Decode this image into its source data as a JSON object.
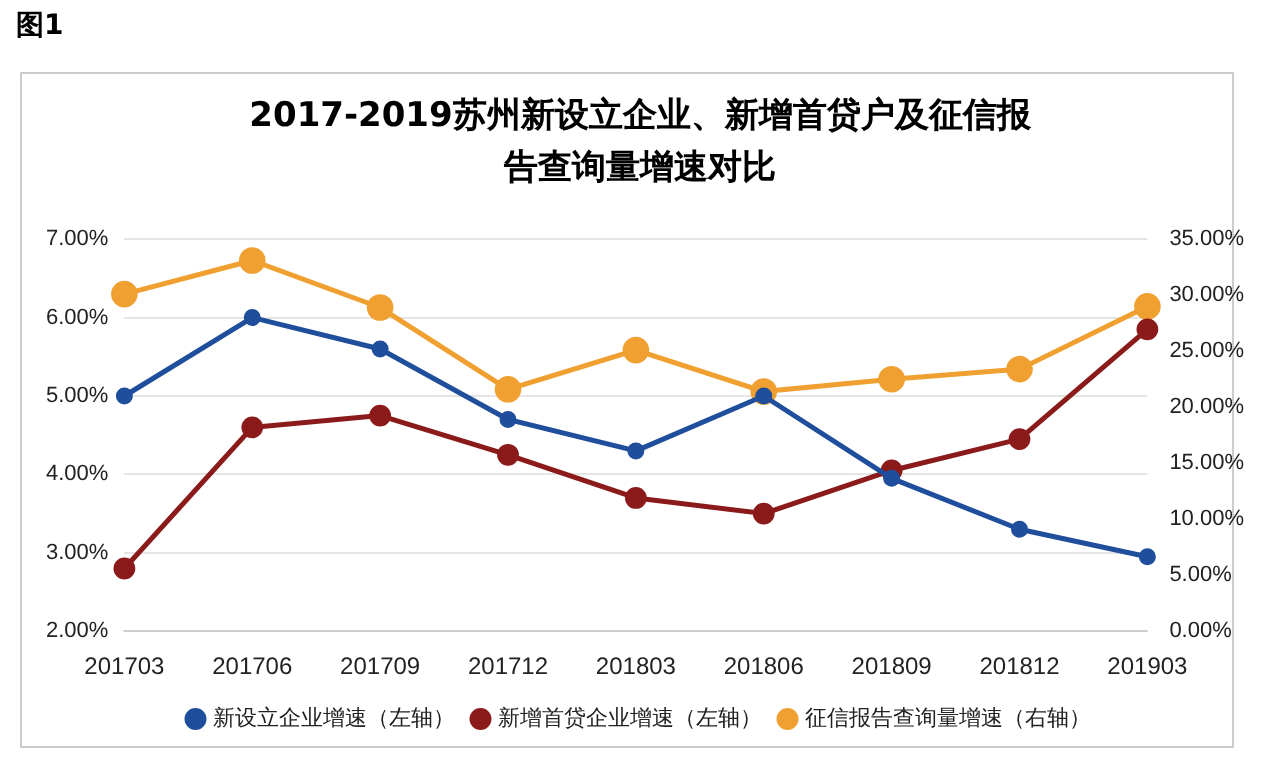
{
  "chart_data": {
    "type": "line",
    "title": "2017-2019苏州新设立企业、新增首贷户及征信报告查询量增速对比",
    "annotations": [
      "图1"
    ],
    "categories": [
      "201703",
      "201706",
      "201709",
      "201712",
      "201803",
      "201806",
      "201809",
      "201812",
      "201903"
    ],
    "series": [
      {
        "name": "新设立企业增速（左轴）",
        "color": "#1f4e9c",
        "values": [
          5.0,
          6.0,
          5.6,
          4.7,
          4.3,
          5.0,
          3.95,
          3.3,
          2.95
        ]
      },
      {
        "name": "新增首贷企业增速（左轴）",
        "color": "#8b1a1a",
        "values": [
          2.8,
          4.6,
          4.75,
          4.25,
          3.7,
          3.5,
          4.05,
          4.45,
          5.85
        ]
      },
      {
        "name": "征信报告查询量增速（右轴）",
        "color": "#f0a030",
        "axis": "y2",
        "values": [
          30.1,
          33.1,
          28.9,
          21.6,
          25.1,
          21.4,
          22.5,
          23.4,
          29.0
        ]
      }
    ],
    "ylim": [
      2,
      7
    ],
    "yticks": [
      {
        "value": 2,
        "label": "2.00%"
      },
      {
        "value": 3,
        "label": "3.00%"
      },
      {
        "value": 4,
        "label": "4.00%"
      },
      {
        "value": 5,
        "label": "5.00%"
      },
      {
        "value": 6,
        "label": "6.00%"
      },
      {
        "value": 7,
        "label": "7.00%"
      }
    ],
    "y2lim": [
      0,
      35
    ],
    "y2ticks": [
      {
        "value": 0,
        "label": "0.00%"
      },
      {
        "value": 5,
        "label": "5.00%"
      },
      {
        "value": 10,
        "label": "10.00%"
      },
      {
        "value": 15,
        "label": "15.00%"
      },
      {
        "value": 20,
        "label": "20.00%"
      },
      {
        "value": 25,
        "label": "25.00%"
      },
      {
        "value": 30,
        "label": "30.00%"
      },
      {
        "value": 35,
        "label": "35.00%"
      }
    ],
    "grid": "y",
    "legend": "bottom",
    "marker": "circle",
    "line_style": "solid"
  }
}
